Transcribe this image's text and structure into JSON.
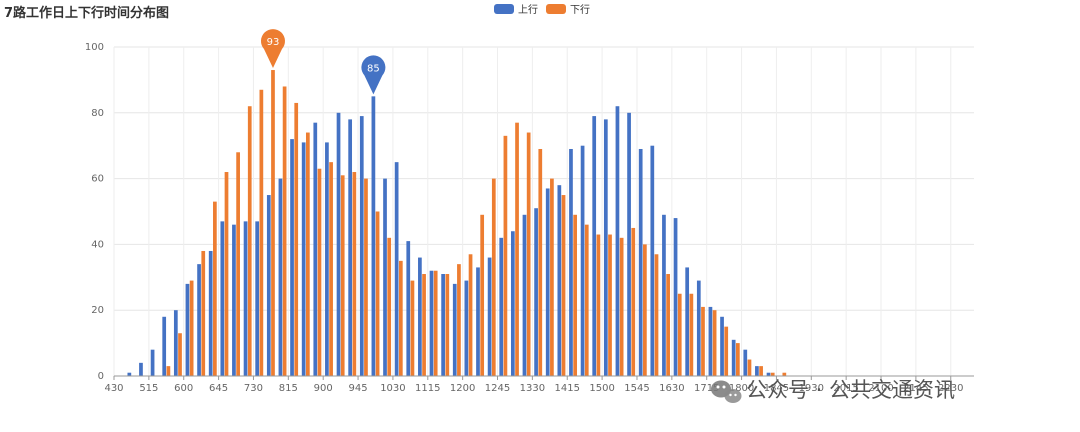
{
  "chart_data": {
    "type": "bar",
    "title": "7路工作日上下行时间分布图",
    "ylim": [
      0,
      100
    ],
    "yticks": [
      0,
      20,
      40,
      60,
      80,
      100
    ],
    "grid": true,
    "legend_position": "top-center",
    "categories": [
      "430",
      "445",
      "500",
      "515",
      "530",
      "545",
      "600",
      "615",
      "630",
      "645",
      "700",
      "715",
      "730",
      "745",
      "800",
      "815",
      "830",
      "845",
      "900",
      "915",
      "930",
      "945",
      "1000",
      "1015",
      "1030",
      "1045",
      "1100",
      "1115",
      "1130",
      "1145",
      "1200",
      "1215",
      "1230",
      "1245",
      "1300",
      "1315",
      "1330",
      "1345",
      "1400",
      "1415",
      "1430",
      "1445",
      "1500",
      "1515",
      "1530",
      "1545",
      "1600",
      "1615",
      "1630",
      "1645",
      "1700",
      "1715",
      "1730",
      "1745",
      "1800",
      "1815",
      "1830",
      "1845",
      "1900",
      "1915",
      "1930",
      "1945",
      "2000",
      "2015",
      "2030",
      "2045",
      "2100",
      "2115",
      "2130",
      "2145",
      "2200",
      "2215",
      "2230",
      "2245"
    ],
    "xtick_labels": [
      "430",
      "515",
      "600",
      "645",
      "730",
      "815",
      "900",
      "945",
      "1030",
      "1115",
      "1200",
      "1245",
      "1330",
      "1415",
      "1500",
      "1545",
      "1630",
      "1715",
      "1800",
      "1845",
      "1930",
      "2015",
      "2100",
      "2145",
      "2230"
    ],
    "series": [
      {
        "name": "上行",
        "color": "#4472c4",
        "values": [
          0,
          1,
          4,
          8,
          18,
          20,
          28,
          34,
          38,
          47,
          46,
          47,
          47,
          55,
          60,
          72,
          71,
          77,
          71,
          80,
          78,
          79,
          85,
          60,
          65,
          41,
          36,
          32,
          31,
          28,
          29,
          33,
          36,
          42,
          44,
          49,
          51,
          57,
          58,
          69,
          70,
          79,
          78,
          82,
          80,
          69,
          70,
          49,
          48,
          33,
          29,
          21,
          18,
          11,
          8,
          3,
          1,
          0,
          0,
          0,
          0,
          0,
          0,
          0,
          0,
          0,
          0,
          0,
          0,
          0,
          0,
          0,
          0,
          0
        ]
      },
      {
        "name": "下行",
        "color": "#ed7d31",
        "values": [
          0,
          0,
          0,
          0,
          3,
          13,
          29,
          38,
          53,
          62,
          68,
          82,
          87,
          93,
          88,
          83,
          74,
          63,
          65,
          61,
          62,
          60,
          50,
          42,
          35,
          29,
          31,
          32,
          31,
          34,
          37,
          49,
          60,
          73,
          77,
          74,
          69,
          60,
          55,
          49,
          46,
          43,
          43,
          42,
          45,
          40,
          37,
          31,
          25,
          25,
          21,
          20,
          15,
          10,
          5,
          3,
          1,
          1,
          0,
          0,
          0,
          0,
          0,
          0,
          0,
          0,
          0,
          0,
          0,
          0,
          0,
          0,
          0,
          0
        ]
      }
    ],
    "markers": [
      {
        "series": "下行",
        "category": "745",
        "value": 93
      },
      {
        "series": "上行",
        "category": "1000",
        "value": 85
      }
    ]
  },
  "watermark": {
    "text": "公众号 · 公共交通资讯",
    "icon": "wechat-icon"
  }
}
